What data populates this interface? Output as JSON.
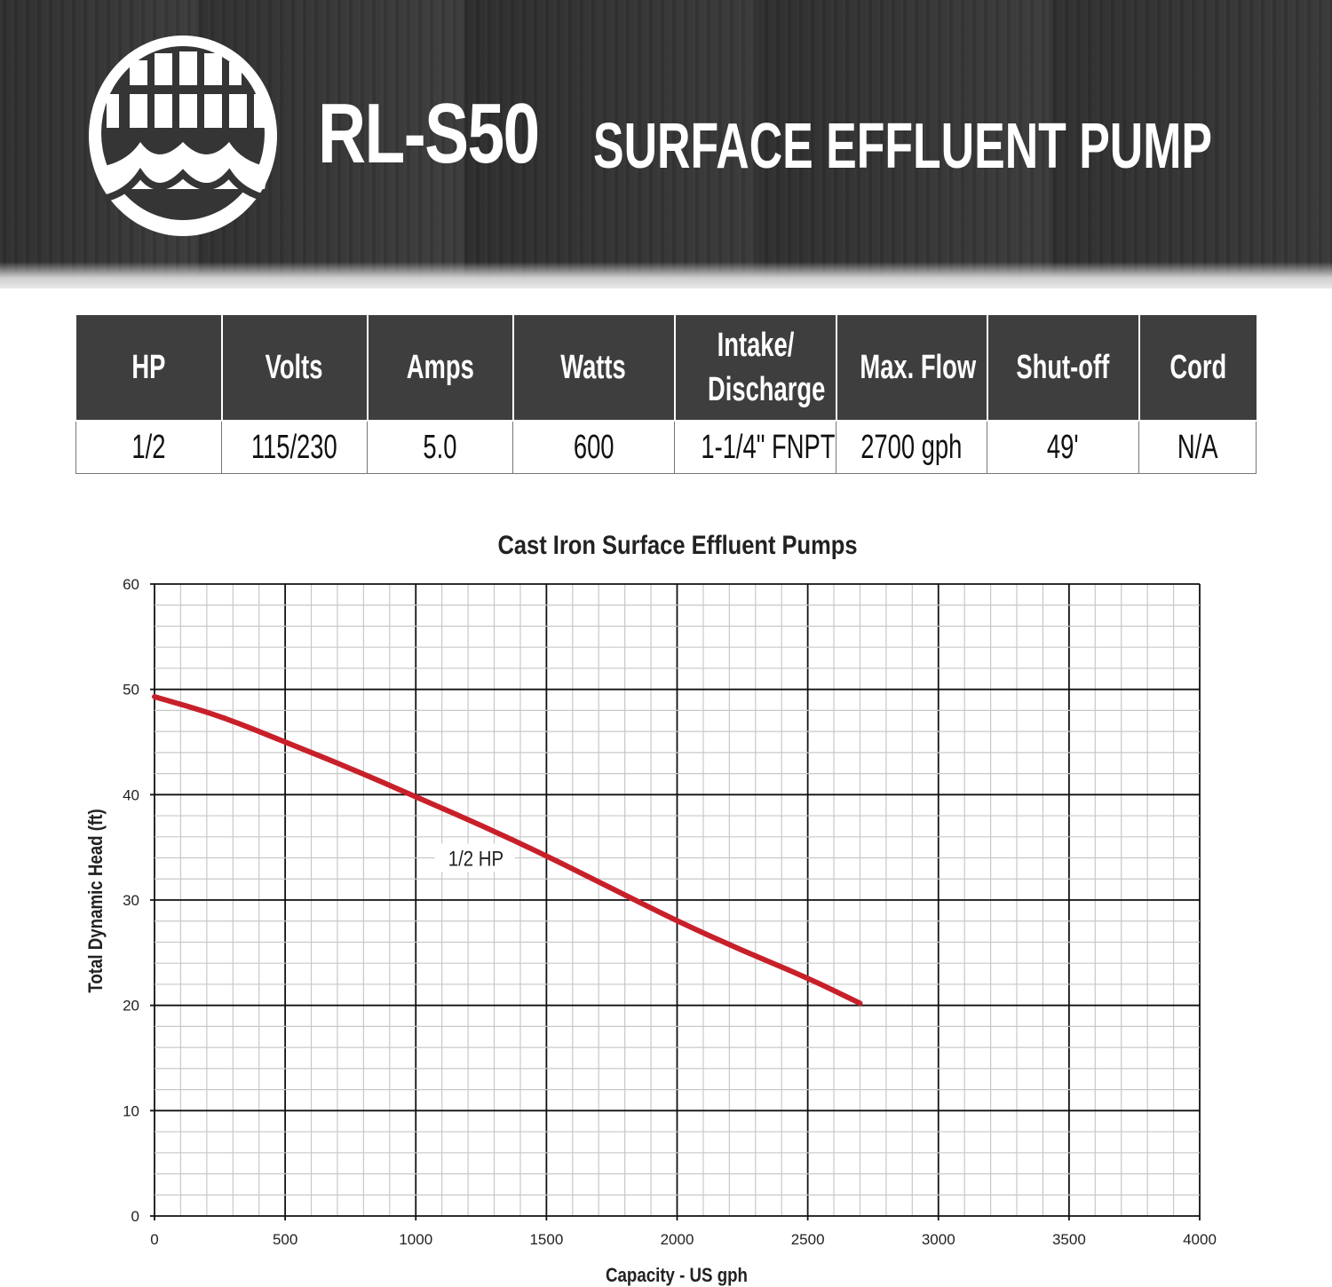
{
  "header": {
    "logo_icon": "grate-and-waves-logo",
    "model": "RL-S50",
    "description": "SURFACE EFFLUENT PUMP"
  },
  "specs": {
    "headers": [
      "HP",
      "Volts",
      "Amps",
      "Watts",
      "Intake/ Discharge",
      "Max. Flow",
      "Shut-off",
      "Cord"
    ],
    "values": [
      "1/2",
      "115/230",
      "5.0",
      "600",
      "1-1/4\" FNPT",
      "2700 gph",
      "49'",
      "N/A"
    ]
  },
  "colors": {
    "banner": "#333333",
    "table_header": "#3e3e3e",
    "curve": "#c8202a"
  },
  "chart_data": {
    "type": "line",
    "title": "Cast Iron Surface Effluent Pumps",
    "xlabel": "Capacity - US gph",
    "ylabel": "Total Dynamic Head (ft)",
    "xlim": [
      0,
      4000
    ],
    "ylim": [
      0,
      60
    ],
    "xticks": [
      0,
      500,
      1000,
      1500,
      2000,
      2500,
      3000,
      3500,
      4000
    ],
    "yticks": [
      0,
      10,
      20,
      30,
      40,
      50,
      60
    ],
    "grid": true,
    "series": [
      {
        "name": "1/2 HP",
        "x": [
          0,
          250,
          500,
          750,
          1000,
          1250,
          1500,
          1750,
          2000,
          2250,
          2500,
          2700
        ],
        "y": [
          49.3,
          47.5,
          45.0,
          42.5,
          39.8,
          37.1,
          34.2,
          31.1,
          28.0,
          25.2,
          22.6,
          20.2
        ]
      }
    ]
  }
}
